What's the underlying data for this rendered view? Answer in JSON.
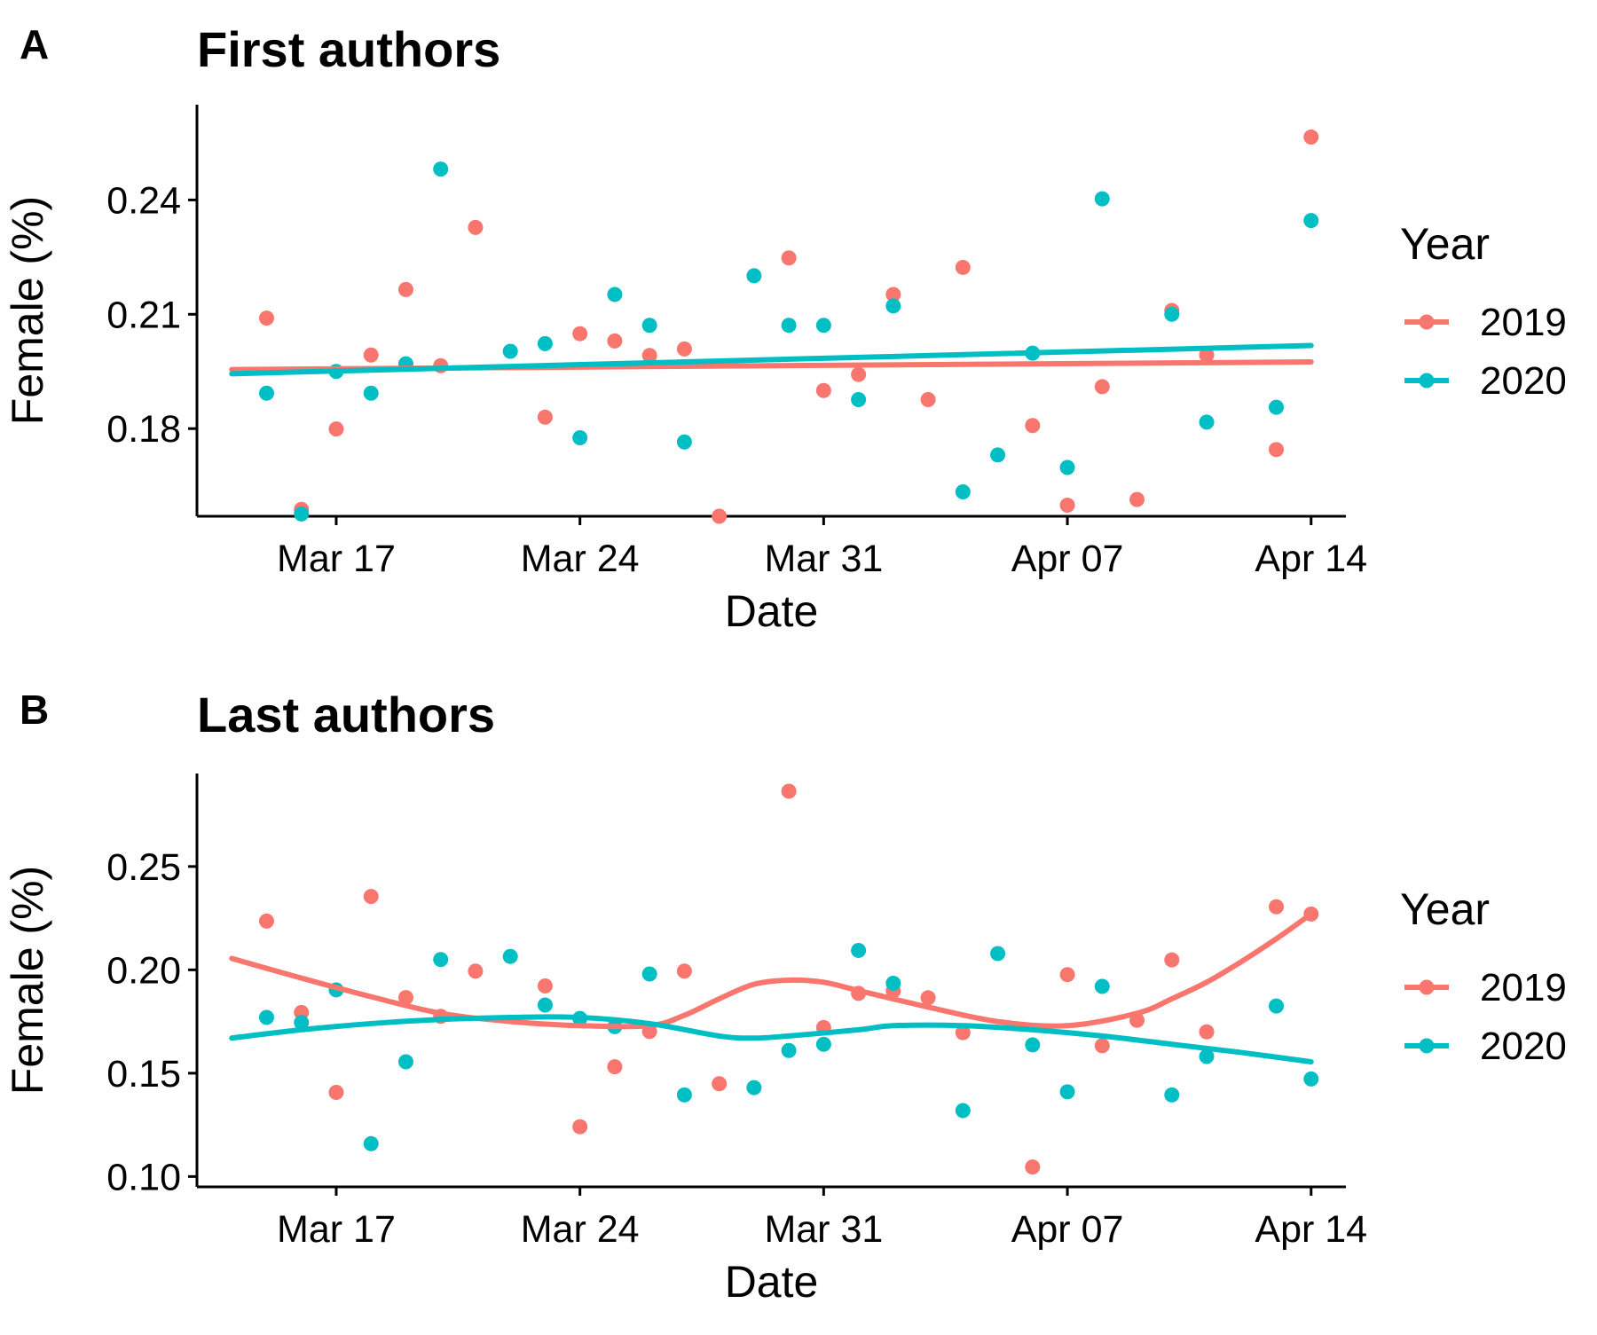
{
  "colors": {
    "2019": "#F8766D",
    "2020": "#00BFC4"
  },
  "chart_data": [
    {
      "panel_label": "A",
      "title": "First authors",
      "type": "scatter",
      "xlabel": "Date",
      "ylabel": "Female (%)",
      "xlim": [
        "2020-03-13",
        "2020-04-15"
      ],
      "ylim": [
        0.157,
        0.265
      ],
      "xticks": [
        {
          "date": "2020-03-17",
          "label": "Mar 17"
        },
        {
          "date": "2020-03-24",
          "label": "Mar 24"
        },
        {
          "date": "2020-03-31",
          "label": "Mar 31"
        },
        {
          "date": "2020-04-07",
          "label": "Apr 07"
        },
        {
          "date": "2020-04-14",
          "label": "Apr 14"
        }
      ],
      "yticks": [
        {
          "value": 0.18,
          "label": "0.18"
        },
        {
          "value": 0.21,
          "label": "0.21"
        },
        {
          "value": 0.24,
          "label": "0.24"
        }
      ],
      "legend": {
        "title": "Year",
        "placement": "right"
      },
      "series": [
        {
          "name": "2019",
          "color_key": "2019",
          "points": [
            [
              "2020-03-15",
              0.209
            ],
            [
              "2020-03-16",
              0.1588
            ],
            [
              "2020-03-17",
              0.1799
            ],
            [
              "2020-03-18",
              0.1993
            ],
            [
              "2020-03-19",
              0.2165
            ],
            [
              "2020-03-20",
              0.1965
            ],
            [
              "2020-03-21",
              0.2328
            ],
            [
              "2020-03-23",
              0.183
            ],
            [
              "2020-03-24",
              0.2049
            ],
            [
              "2020-03-25",
              0.203
            ],
            [
              "2020-03-26",
              0.1992
            ],
            [
              "2020-03-27",
              0.2009
            ],
            [
              "2020-03-28",
              0.157
            ],
            [
              "2020-03-30",
              0.2248
            ],
            [
              "2020-03-31",
              0.19
            ],
            [
              "2020-04-01",
              0.1942
            ],
            [
              "2020-04-02",
              0.2152
            ],
            [
              "2020-04-03",
              0.1876
            ],
            [
              "2020-04-04",
              0.2223
            ],
            [
              "2020-04-06",
              0.1808
            ],
            [
              "2020-04-07",
              0.1599
            ],
            [
              "2020-04-08",
              0.191
            ],
            [
              "2020-04-09",
              0.1614
            ],
            [
              "2020-04-10",
              0.211
            ],
            [
              "2020-04-11",
              0.1993
            ],
            [
              "2020-04-13",
              0.1745
            ],
            [
              "2020-04-14",
              0.2565
            ]
          ],
          "trend": [
            [
              "2020-03-14",
              0.1955
            ],
            [
              "2020-04-14",
              0.1975
            ]
          ]
        },
        {
          "name": "2020",
          "color_key": "2020",
          "points": [
            [
              "2020-03-15",
              0.1893
            ],
            [
              "2020-03-16",
              0.1576
            ],
            [
              "2020-03-17",
              0.195
            ],
            [
              "2020-03-18",
              0.1893
            ],
            [
              "2020-03-19",
              0.197
            ],
            [
              "2020-03-20",
              0.2481
            ],
            [
              "2020-03-22",
              0.2003
            ],
            [
              "2020-03-23",
              0.2023
            ],
            [
              "2020-03-24",
              0.1776
            ],
            [
              "2020-03-25",
              0.2152
            ],
            [
              "2020-03-26",
              0.2071
            ],
            [
              "2020-03-27",
              0.1765
            ],
            [
              "2020-03-29",
              0.2201
            ],
            [
              "2020-03-30",
              0.2071
            ],
            [
              "2020-03-31",
              0.2071
            ],
            [
              "2020-04-01",
              0.1876
            ],
            [
              "2020-04-02",
              0.2122
            ],
            [
              "2020-04-04",
              0.1634
            ],
            [
              "2020-04-05",
              0.1731
            ],
            [
              "2020-04-06",
              0.1998
            ],
            [
              "2020-04-07",
              0.1698
            ],
            [
              "2020-04-08",
              0.2403
            ],
            [
              "2020-04-10",
              0.21
            ],
            [
              "2020-04-11",
              0.1817
            ],
            [
              "2020-04-13",
              0.1856
            ],
            [
              "2020-04-14",
              0.2346
            ]
          ],
          "trend": [
            [
              "2020-03-14",
              0.1944
            ],
            [
              "2020-04-14",
              0.2018
            ]
          ]
        }
      ]
    },
    {
      "panel_label": "B",
      "title": "Last authors",
      "type": "scatter",
      "xlabel": "Date",
      "ylabel": "Female (%)",
      "xlim": [
        "2020-03-13",
        "2020-04-15"
      ],
      "ylim": [
        0.095,
        0.295
      ],
      "xticks": [
        {
          "date": "2020-03-17",
          "label": "Mar 17"
        },
        {
          "date": "2020-03-24",
          "label": "Mar 24"
        },
        {
          "date": "2020-03-31",
          "label": "Mar 31"
        },
        {
          "date": "2020-04-07",
          "label": "Apr 07"
        },
        {
          "date": "2020-04-14",
          "label": "Apr 14"
        }
      ],
      "yticks": [
        {
          "value": 0.1,
          "label": "0.10"
        },
        {
          "value": 0.15,
          "label": "0.15"
        },
        {
          "value": 0.2,
          "label": "0.20"
        },
        {
          "value": 0.25,
          "label": "0.25"
        }
      ],
      "legend": {
        "title": "Year",
        "placement": "right"
      },
      "series": [
        {
          "name": "2019",
          "color_key": "2019",
          "points": [
            [
              "2020-03-15",
              0.2236
            ],
            [
              "2020-03-16",
              0.1794
            ],
            [
              "2020-03-17",
              0.1407
            ],
            [
              "2020-03-18",
              0.2355
            ],
            [
              "2020-03-19",
              0.1866
            ],
            [
              "2020-03-20",
              0.1775
            ],
            [
              "2020-03-21",
              0.1994
            ],
            [
              "2020-03-23",
              0.1922
            ],
            [
              "2020-03-24",
              0.1241
            ],
            [
              "2020-03-25",
              0.1531
            ],
            [
              "2020-03-26",
              0.1702
            ],
            [
              "2020-03-27",
              0.1994
            ],
            [
              "2020-03-28",
              0.1449
            ],
            [
              "2020-03-30",
              0.2864
            ],
            [
              "2020-03-31",
              0.1721
            ],
            [
              "2020-04-01",
              0.1886
            ],
            [
              "2020-04-02",
              0.1898
            ],
            [
              "2020-04-03",
              0.1865
            ],
            [
              "2020-04-04",
              0.1696
            ],
            [
              "2020-04-06",
              0.1046
            ],
            [
              "2020-04-07",
              0.1977
            ],
            [
              "2020-04-08",
              0.1633
            ],
            [
              "2020-04-09",
              0.1756
            ],
            [
              "2020-04-10",
              0.2048
            ],
            [
              "2020-04-11",
              0.17
            ],
            [
              "2020-04-13",
              0.2305
            ],
            [
              "2020-04-14",
              0.227
            ]
          ],
          "trend": [
            [
              "2020-03-14",
              0.2055
            ],
            [
              "2020-03-16",
              0.196
            ],
            [
              "2020-03-18",
              0.187
            ],
            [
              "2020-03-20",
              0.179
            ],
            [
              "2020-03-22",
              0.175
            ],
            [
              "2020-03-24",
              0.173
            ],
            [
              "2020-03-26",
              0.173
            ],
            [
              "2020-03-27",
              0.178
            ],
            [
              "2020-03-28",
              0.186
            ],
            [
              "2020-03-29",
              0.193
            ],
            [
              "2020-03-30",
              0.195
            ],
            [
              "2020-03-31",
              0.194
            ],
            [
              "2020-04-01",
              0.19
            ],
            [
              "2020-04-03",
              0.182
            ],
            [
              "2020-04-05",
              0.175
            ],
            [
              "2020-04-07",
              0.173
            ],
            [
              "2020-04-09",
              0.179
            ],
            [
              "2020-04-10",
              0.186
            ],
            [
              "2020-04-11",
              0.194
            ],
            [
              "2020-04-12",
              0.204
            ],
            [
              "2020-04-13",
              0.215
            ],
            [
              "2020-04-14",
              0.227
            ]
          ]
        },
        {
          "name": "2020",
          "color_key": "2020",
          "points": [
            [
              "2020-03-15",
              0.177
            ],
            [
              "2020-03-16",
              0.1745
            ],
            [
              "2020-03-17",
              0.1903
            ],
            [
              "2020-03-18",
              0.1159
            ],
            [
              "2020-03-19",
              0.1555
            ],
            [
              "2020-03-20",
              0.205
            ],
            [
              "2020-03-22",
              0.2065
            ],
            [
              "2020-03-23",
              0.183
            ],
            [
              "2020-03-24",
              0.1765
            ],
            [
              "2020-03-25",
              0.1725
            ],
            [
              "2020-03-26",
              0.198
            ],
            [
              "2020-03-27",
              0.1395
            ],
            [
              "2020-03-29",
              0.143
            ],
            [
              "2020-03-30",
              0.161
            ],
            [
              "2020-03-31",
              0.164
            ],
            [
              "2020-04-01",
              0.2094
            ],
            [
              "2020-04-02",
              0.1935
            ],
            [
              "2020-04-04",
              0.1319
            ],
            [
              "2020-04-05",
              0.2079
            ],
            [
              "2020-04-06",
              0.1637
            ],
            [
              "2020-04-07",
              0.141
            ],
            [
              "2020-04-08",
              0.192
            ],
            [
              "2020-04-10",
              0.1395
            ],
            [
              "2020-04-11",
              0.1581
            ],
            [
              "2020-04-13",
              0.1825
            ],
            [
              "2020-04-14",
              0.1472
            ]
          ],
          "trend": [
            [
              "2020-03-14",
              0.167
            ],
            [
              "2020-03-16",
              0.171
            ],
            [
              "2020-03-18",
              0.174
            ],
            [
              "2020-03-20",
              0.176
            ],
            [
              "2020-03-22",
              0.177
            ],
            [
              "2020-03-24",
              0.177
            ],
            [
              "2020-03-26",
              0.174
            ],
            [
              "2020-03-28",
              0.168
            ],
            [
              "2020-03-29",
              0.167
            ],
            [
              "2020-03-30",
              0.168
            ],
            [
              "2020-04-01",
              0.171
            ],
            [
              "2020-04-02",
              0.173
            ],
            [
              "2020-04-04",
              0.173
            ],
            [
              "2020-04-06",
              0.171
            ],
            [
              "2020-04-08",
              0.168
            ],
            [
              "2020-04-10",
              0.164
            ],
            [
              "2020-04-12",
              0.16
            ],
            [
              "2020-04-14",
              0.1555
            ]
          ]
        }
      ]
    }
  ]
}
